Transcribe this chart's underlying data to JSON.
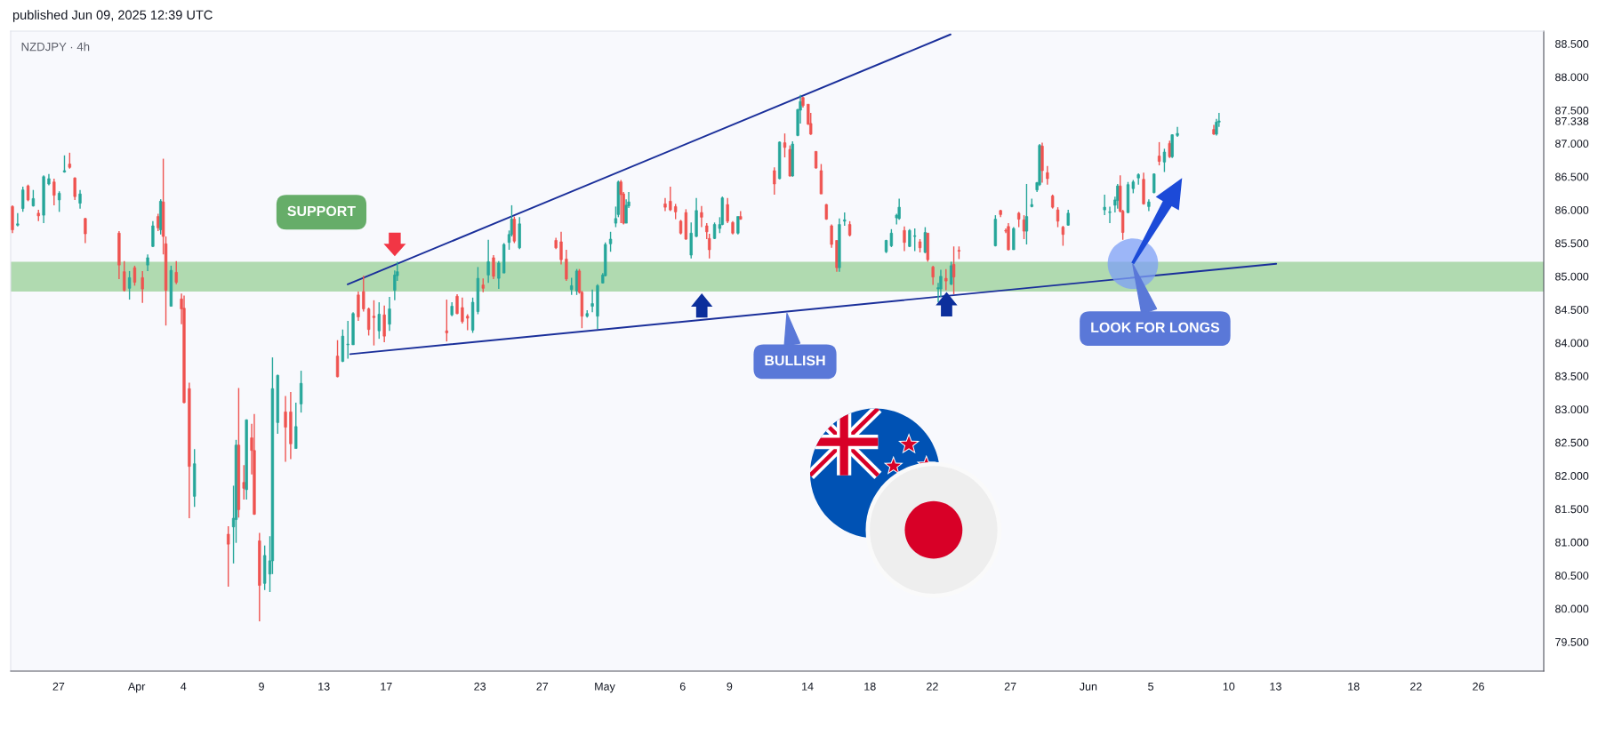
{
  "chart_data": {
    "type": "candlestick",
    "title": "NZDJPY · 4h",
    "annotations": [
      "published Jun 09, 2025 12:39 UTC",
      "SUPPORT",
      {
        "text": "BULLISH",
        "x": "2025-05-12T16:25",
        "y": 84.44
      },
      {
        "text": "LOOK FOR LONGS",
        "x": "2025-06-03T20:25",
        "y": 85.18
      }
    ],
    "xlim": [
      "2025-03-23T22:15",
      "2025-06-30T04:30"
    ],
    "ylim": [
      79.06,
      88.69
    ],
    "xticks": [
      {
        "value": "2025-03-27",
        "label": "27"
      },
      {
        "value": "2025-04-01",
        "label": "Apr"
      },
      {
        "value": "2025-04-04",
        "label": "4"
      },
      {
        "value": "2025-04-09",
        "label": "9"
      },
      {
        "value": "2025-04-13",
        "label": "13"
      },
      {
        "value": "2025-04-17",
        "label": "17"
      },
      {
        "value": "2025-04-23",
        "label": "23"
      },
      {
        "value": "2025-04-27",
        "label": "27"
      },
      {
        "value": "2025-05-01",
        "label": "May"
      },
      {
        "value": "2025-05-06",
        "label": "6"
      },
      {
        "value": "2025-05-09",
        "label": "9"
      },
      {
        "value": "2025-05-14",
        "label": "14"
      },
      {
        "value": "2025-05-18",
        "label": "18"
      },
      {
        "value": "2025-05-22",
        "label": "22"
      },
      {
        "value": "2025-05-27",
        "label": "27"
      },
      {
        "value": "2025-06-01",
        "label": "Jun"
      },
      {
        "value": "2025-06-05",
        "label": "5"
      },
      {
        "value": "2025-06-10",
        "label": "10"
      },
      {
        "value": "2025-06-13",
        "label": "13"
      },
      {
        "value": "2025-06-18",
        "label": "18"
      },
      {
        "value": "2025-06-22",
        "label": "22"
      },
      {
        "value": "2025-06-26",
        "label": "26"
      }
    ],
    "yticks": [
      {
        "value": 79.5,
        "label": "79.500"
      },
      {
        "value": 80.0,
        "label": "80.000"
      },
      {
        "value": 80.5,
        "label": "80.500"
      },
      {
        "value": 81.0,
        "label": "81.000"
      },
      {
        "value": 81.5,
        "label": "81.500"
      },
      {
        "value": 82.0,
        "label": "82.000"
      },
      {
        "value": 82.5,
        "label": "82.500"
      },
      {
        "value": 83.0,
        "label": "83.000"
      },
      {
        "value": 83.5,
        "label": "83.500"
      },
      {
        "value": 84.0,
        "label": "84.000"
      },
      {
        "value": 84.5,
        "label": "84.500"
      },
      {
        "value": 85.0,
        "label": "85.000"
      },
      {
        "value": 85.5,
        "label": "85.500"
      },
      {
        "value": 86.0,
        "label": "86.000"
      },
      {
        "value": 86.5,
        "label": "86.500"
      },
      {
        "value": 87.0,
        "label": "87.000"
      },
      {
        "value": 87.5,
        "label": "87.500"
      },
      {
        "value": 88.0,
        "label": "88.000"
      },
      {
        "value": 88.5,
        "label": "88.500"
      },
      87.338
    ],
    "bands": [
      {
        "axis": "y",
        "from": 84.77,
        "to": 85.22,
        "color": "#b0dab0"
      }
    ],
    "series": [
      {
        "type": "line",
        "x": [
          "2025-04-14T12:40",
          "2025-05-23T04:00"
        ],
        "values": [
          84.88,
          88.64
        ],
        "color": "#1a2f9a"
      },
      {
        "type": "line",
        "x": [
          "2025-04-14T16:35",
          "2025-06-13T00:55"
        ],
        "values": [
          83.83,
          85.19
        ],
        "color": "#1a2f9a"
      },
      {
        "x": [
          "2025-03-24T01:00",
          "2025-03-24T09:00",
          "2025-03-24T17:00",
          "2025-03-25T01:00",
          "2025-03-25T09:00",
          "2025-03-25T17:00",
          "2025-03-26T01:00",
          "2025-03-26T09:00",
          "2025-03-26T17:00",
          "2025-03-27T01:00",
          "2025-03-27T09:00",
          "2025-03-27T17:00",
          "2025-03-28T01:00",
          "2025-03-28T09:00",
          "2025-03-28T17:00",
          "2025-03-30T21:00",
          "2025-03-31T05:00",
          "2025-03-31T13:00",
          "2025-03-31T21:00",
          "2025-04-01T09:00",
          "2025-04-01T17:00",
          "2025-04-02T01:00",
          "2025-04-02T09:00",
          "2025-04-02T13:00",
          "2025-04-02T17:00",
          "2025-04-02T21:00",
          "2025-04-03T05:00",
          "2025-04-03T13:00",
          "2025-04-03T21:00",
          "2025-04-04T01:00",
          "2025-04-04T09:00",
          "2025-04-04T17:00",
          "2025-04-06T21:00",
          "2025-04-07T05:00",
          "2025-04-07T09:00",
          "2025-04-07T13:00",
          "2025-04-07T21:00",
          "2025-04-08T01:00",
          "2025-04-08T09:00",
          "2025-04-08T13:00",
          "2025-04-08T21:00",
          "2025-04-09T05:00",
          "2025-04-09T13:00",
          "2025-04-09T17:00",
          "2025-04-10T01:00",
          "2025-04-10T13:00",
          "2025-04-10T21:00",
          "2025-04-11T05:00",
          "2025-04-11T13:00",
          "2025-04-13T21:00",
          "2025-04-14T05:00",
          "2025-04-14T13:00",
          "2025-04-14T21:00",
          "2025-04-15T05:00",
          "2025-04-15T13:00",
          "2025-04-15T21:00",
          "2025-04-16T05:00",
          "2025-04-16T13:00",
          "2025-04-16T21:00",
          "2025-04-17T05:00",
          "2025-04-17T13:00",
          "2025-04-17T17:00",
          "2025-04-20T21:00",
          "2025-04-21T05:00",
          "2025-04-21T13:00",
          "2025-04-21T21:00",
          "2025-04-22T05:00",
          "2025-04-22T13:00",
          "2025-04-22T21:00",
          "2025-04-23T05:00",
          "2025-04-23T13:00",
          "2025-04-23T21:00",
          "2025-04-24T05:00",
          "2025-04-24T13:00",
          "2025-04-24T21:00",
          "2025-04-25T01:00",
          "2025-04-25T05:00",
          "2025-04-25T13:00",
          "2025-04-27T21:00",
          "2025-04-28T05:00",
          "2025-04-28T13:00",
          "2025-04-28T21:00",
          "2025-04-29T05:00",
          "2025-04-29T09:00",
          "2025-04-29T13:00",
          "2025-04-29T21:00",
          "2025-04-30T05:00",
          "2025-04-30T13:00",
          "2025-04-30T21:00",
          "2025-05-01T01:00",
          "2025-05-01T09:00",
          "2025-05-01T17:00",
          "2025-05-01T21:00",
          "2025-05-02T01:00",
          "2025-05-02T05:00",
          "2025-05-02T09:00",
          "2025-05-02T13:00",
          "2025-05-04T21:00",
          "2025-05-05T05:00",
          "2025-05-05T13:00",
          "2025-05-05T21:00",
          "2025-05-06T05:00",
          "2025-05-06T13:00",
          "2025-05-06T21:00",
          "2025-05-07T05:00",
          "2025-05-07T13:00",
          "2025-05-07T17:00",
          "2025-05-08T01:00",
          "2025-05-08T09:00",
          "2025-05-08T13:00",
          "2025-05-08T21:00",
          "2025-05-09T05:00",
          "2025-05-09T13:00",
          "2025-05-09T17:00",
          "2025-05-11T21:00",
          "2025-05-12T05:00",
          "2025-05-12T13:00",
          "2025-05-12T21:00",
          "2025-05-13T01:00",
          "2025-05-13T09:00",
          "2025-05-13T13:00",
          "2025-05-13T17:00",
          "2025-05-14T01:00",
          "2025-05-14T05:00",
          "2025-05-14T13:00",
          "2025-05-14T21:00",
          "2025-05-15T05:00",
          "2025-05-15T13:00",
          "2025-05-15T21:00",
          "2025-05-16T01:00",
          "2025-05-16T09:00",
          "2025-05-16T17:00",
          "2025-05-19T01:00",
          "2025-05-19T09:00",
          "2025-05-19T17:00",
          "2025-05-19T21:00",
          "2025-05-20T05:00",
          "2025-05-20T13:00",
          "2025-05-20T21:00",
          "2025-05-21T05:00",
          "2025-05-21T13:00",
          "2025-05-21T17:00",
          "2025-05-22T01:00",
          "2025-05-22T09:00",
          "2025-05-22T13:00",
          "2025-05-22T21:00",
          "2025-05-23T05:00",
          "2025-05-23T09:00",
          "2025-05-23T17:00",
          "2025-05-26T01:00",
          "2025-05-26T09:00",
          "2025-05-26T17:00",
          "2025-05-26T21:00",
          "2025-05-27T05:00",
          "2025-05-27T13:00",
          "2025-05-27T21:00",
          "2025-05-28T01:00",
          "2025-05-28T09:00",
          "2025-05-28T17:00",
          "2025-05-28T21:00",
          "2025-05-29T01:00",
          "2025-05-29T09:00",
          "2025-05-29T17:00",
          "2025-05-30T01:00",
          "2025-05-30T09:00",
          "2025-05-30T17:00",
          "2025-06-02T01:00",
          "2025-06-02T09:00",
          "2025-06-02T17:00",
          "2025-06-02T21:00",
          "2025-06-03T01:00",
          "2025-06-03T05:00",
          "2025-06-03T13:00",
          "2025-06-03T21:00",
          "2025-06-04T05:00",
          "2025-06-04T13:00",
          "2025-06-04T21:00",
          "2025-06-05T05:00",
          "2025-06-05T13:00",
          "2025-06-05T21:00",
          "2025-06-06T05:00",
          "2025-06-06T09:00",
          "2025-06-06T17:00",
          "2025-06-09T01:00",
          "2025-06-09T05:00",
          "2025-06-09T09:00"
        ],
        "ohlc": [
          [
            86.05,
            86.07,
            85.65,
            85.7
          ],
          [
            85.77,
            85.95,
            85.75,
            85.79
          ],
          [
            86.02,
            86.35,
            85.97,
            86.3
          ],
          [
            86.36,
            86.38,
            86.13,
            86.15
          ],
          [
            86.06,
            86.3,
            86.05,
            86.17
          ],
          [
            85.95,
            86.0,
            85.83,
            85.91
          ],
          [
            85.92,
            86.52,
            85.8,
            86.5
          ],
          [
            86.39,
            86.54,
            86.37,
            86.47
          ],
          [
            86.42,
            86.47,
            86.07,
            86.22
          ],
          [
            86.15,
            86.28,
            85.97,
            86.25
          ],
          [
            86.57,
            86.82,
            86.56,
            86.59
          ],
          [
            86.69,
            86.86,
            86.62,
            86.64
          ],
          [
            86.48,
            86.49,
            86.15,
            86.2
          ],
          [
            86.1,
            86.3,
            86.02,
            86.24
          ],
          [
            85.87,
            85.88,
            85.5,
            85.64
          ],
          [
            85.65,
            85.68,
            84.96,
            85.17
          ],
          [
            85.07,
            85.23,
            84.77,
            84.79
          ],
          [
            84.82,
            85.08,
            84.65,
            84.98
          ],
          [
            85.13,
            85.16,
            84.86,
            84.91
          ],
          [
            84.98,
            85.08,
            84.6,
            84.81
          ],
          [
            85.17,
            85.33,
            85.08,
            85.28
          ],
          [
            85.45,
            85.83,
            85.44,
            85.76
          ],
          [
            85.9,
            85.94,
            85.68,
            85.73
          ],
          [
            85.7,
            86.16,
            85.63,
            86.13
          ],
          [
            86.12,
            86.77,
            85.33,
            85.6
          ],
          [
            85.49,
            85.6,
            84.26,
            84.79
          ],
          [
            84.55,
            85.16,
            84.55,
            85.09
          ],
          [
            85.06,
            85.23,
            84.88,
            84.91
          ],
          [
            84.66,
            84.74,
            84.28,
            84.51
          ],
          [
            84.52,
            84.71,
            83.09,
            83.1
          ],
          [
            83.31,
            83.4,
            81.36,
            82.14
          ],
          [
            81.69,
            82.4,
            81.53,
            82.18
          ],
          [
            81.12,
            81.24,
            80.33,
            80.97
          ],
          [
            81.23,
            81.85,
            80.68,
            81.36
          ],
          [
            81.34,
            82.54,
            80.99,
            82.46
          ],
          [
            82.46,
            83.32,
            81.37,
            81.49
          ],
          [
            81.9,
            82.16,
            81.64,
            81.81
          ],
          [
            81.79,
            82.85,
            81.64,
            82.84
          ],
          [
            82.57,
            82.78,
            82.02,
            82.38
          ],
          [
            82.38,
            82.93,
            81.41,
            81.42
          ],
          [
            81.02,
            81.14,
            79.81,
            80.35
          ],
          [
            80.38,
            80.95,
            80.28,
            80.8
          ],
          [
            80.52,
            81.09,
            80.25,
            80.72
          ],
          [
            80.72,
            83.78,
            80.52,
            83.31
          ],
          [
            82.8,
            83.52,
            82.63,
            83.51
          ],
          [
            82.96,
            83.2,
            82.21,
            82.73
          ],
          [
            82.96,
            83.26,
            82.25,
            82.48
          ],
          [
            82.41,
            83.1,
            82.41,
            82.74
          ],
          [
            83.08,
            83.58,
            82.95,
            83.39
          ],
          [
            83.8,
            84.04,
            83.48,
            83.49
          ],
          [
            83.72,
            84.2,
            83.71,
            84.1
          ],
          [
            83.97,
            84.33,
            83.76,
            83.98
          ],
          [
            83.97,
            84.46,
            83.97,
            84.44
          ],
          [
            84.72,
            84.77,
            84.33,
            84.39
          ],
          [
            84.77,
            85.01,
            84.47,
            84.51
          ],
          [
            84.51,
            84.53,
            84.11,
            84.2
          ],
          [
            84.4,
            84.64,
            83.96,
            84.38
          ],
          [
            84.18,
            84.61,
            84.06,
            84.43
          ],
          [
            84.42,
            84.56,
            84.01,
            84.1
          ],
          [
            84.28,
            84.69,
            84.18,
            84.51
          ],
          [
            84.79,
            85.09,
            84.64,
            85.02
          ],
          [
            85.01,
            85.22,
            84.93,
            85.07
          ],
          [
            84.18,
            84.65,
            84.02,
            84.15
          ],
          [
            84.42,
            84.61,
            84.4,
            84.55
          ],
          [
            84.7,
            84.73,
            84.43,
            84.44
          ],
          [
            84.53,
            84.68,
            84.29,
            84.32
          ],
          [
            84.4,
            84.43,
            84.19,
            84.37
          ],
          [
            84.19,
            84.68,
            84.15,
            84.61
          ],
          [
            84.47,
            85.14,
            84.43,
            84.97
          ],
          [
            84.87,
            84.97,
            84.76,
            84.82
          ],
          [
            85.02,
            85.55,
            84.9,
            85.22
          ],
          [
            85.28,
            85.32,
            84.96,
            85.0
          ],
          [
            84.97,
            85.23,
            84.81,
            85.2
          ],
          [
            85.05,
            85.5,
            85.05,
            85.48
          ],
          [
            85.51,
            85.69,
            85.4,
            85.63
          ],
          [
            85.63,
            86.07,
            85.6,
            85.86
          ],
          [
            85.86,
            85.9,
            85.5,
            85.53
          ],
          [
            85.43,
            85.89,
            85.41,
            85.79
          ],
          [
            85.54,
            85.58,
            85.41,
            85.43
          ],
          [
            85.52,
            85.67,
            85.18,
            85.25
          ],
          [
            85.26,
            85.4,
            84.93,
            84.96
          ],
          [
            84.8,
            84.98,
            84.72,
            84.86
          ],
          [
            84.78,
            85.11,
            84.72,
            85.08
          ],
          [
            85.08,
            85.11,
            84.74,
            84.76
          ],
          [
            84.76,
            84.78,
            84.22,
            84.4
          ],
          [
            84.4,
            84.49,
            84.38,
            84.44
          ],
          [
            84.55,
            84.8,
            84.46,
            84.59
          ],
          [
            84.4,
            84.88,
            84.21,
            84.86
          ],
          [
            84.9,
            85.05,
            84.89,
            85.02
          ],
          [
            85.01,
            85.51,
            85.0,
            85.48
          ],
          [
            85.49,
            85.67,
            85.37,
            85.56
          ],
          [
            85.8,
            86.05,
            85.74,
            85.87
          ],
          [
            85.93,
            86.44,
            85.89,
            86.42
          ],
          [
            86.42,
            86.45,
            85.8,
            86.23
          ],
          [
            86.24,
            86.27,
            85.78,
            85.8
          ],
          [
            85.8,
            86.16,
            85.8,
            86.07
          ],
          [
            86.06,
            86.27,
            86.03,
            86.12
          ],
          [
            86.09,
            86.18,
            85.98,
            86.04
          ],
          [
            86.13,
            86.35,
            85.98,
            86.0
          ],
          [
            86.05,
            86.09,
            85.86,
            85.97
          ],
          [
            85.83,
            85.85,
            85.63,
            85.65
          ],
          [
            85.96,
            86.01,
            85.55,
            85.56
          ],
          [
            85.32,
            85.81,
            85.27,
            85.65
          ],
          [
            85.6,
            86.18,
            85.59,
            85.99
          ],
          [
            85.96,
            86.06,
            85.74,
            85.89
          ],
          [
            85.76,
            85.8,
            85.56,
            85.67
          ],
          [
            85.57,
            85.64,
            85.27,
            85.4
          ],
          [
            85.57,
            85.81,
            85.56,
            85.78
          ],
          [
            85.72,
            85.89,
            85.65,
            85.78
          ],
          [
            85.78,
            86.2,
            85.77,
            86.18
          ],
          [
            86.08,
            86.18,
            85.8,
            85.83
          ],
          [
            85.81,
            85.83,
            85.63,
            85.65
          ],
          [
            85.65,
            85.9,
            85.63,
            85.9
          ],
          [
            85.9,
            85.98,
            85.85,
            85.86
          ],
          [
            86.59,
            86.64,
            86.23,
            86.39
          ],
          [
            86.47,
            87.03,
            86.46,
            87.02
          ],
          [
            87.01,
            87.15,
            86.79,
            86.94
          ],
          [
            86.91,
            86.97,
            86.5,
            86.51
          ],
          [
            86.51,
            87.03,
            86.5,
            86.99
          ],
          [
            87.12,
            87.52,
            87.11,
            87.51
          ],
          [
            87.5,
            87.73,
            87.3,
            87.63
          ],
          [
            87.69,
            87.7,
            87.54,
            87.57
          ],
          [
            87.59,
            87.59,
            87.28,
            87.29
          ],
          [
            87.3,
            87.46,
            87.13,
            87.14
          ],
          [
            86.88,
            86.88,
            86.62,
            86.63
          ],
          [
            86.59,
            86.69,
            86.24,
            86.24
          ],
          [
            86.08,
            86.09,
            85.85,
            85.86
          ],
          [
            85.76,
            85.78,
            85.43,
            85.48
          ],
          [
            85.54,
            85.54,
            85.07,
            85.13
          ],
          [
            85.13,
            85.87,
            85.07,
            85.78
          ],
          [
            85.83,
            85.96,
            85.76,
            85.85
          ],
          [
            85.78,
            85.83,
            85.6,
            85.62
          ],
          [
            85.37,
            85.55,
            85.35,
            85.54
          ],
          [
            85.46,
            85.71,
            85.44,
            85.65
          ],
          [
            85.88,
            85.94,
            85.78,
            85.92
          ],
          [
            85.87,
            86.17,
            85.85,
            86.04
          ],
          [
            85.69,
            85.75,
            85.38,
            85.51
          ],
          [
            85.45,
            85.71,
            85.44,
            85.69
          ],
          [
            85.6,
            85.72,
            85.38,
            85.61
          ],
          [
            85.52,
            85.56,
            85.36,
            85.43
          ],
          [
            85.36,
            85.74,
            85.35,
            85.66
          ],
          [
            85.65,
            85.65,
            85.22,
            85.25
          ],
          [
            85.14,
            85.16,
            84.87,
            84.99
          ],
          [
            84.81,
            84.9,
            84.61,
            84.83
          ],
          [
            84.81,
            85.1,
            84.69,
            85.0
          ],
          [
            84.97,
            85.11,
            84.79,
            84.93
          ],
          [
            84.88,
            85.22,
            84.87,
            85.16
          ],
          [
            85.18,
            85.45,
            84.73,
            84.99
          ],
          [
            85.39,
            85.45,
            85.26,
            85.38
          ],
          [
            85.46,
            85.92,
            85.45,
            85.86
          ],
          [
            85.99,
            86.0,
            85.89,
            85.93
          ],
          [
            85.69,
            85.72,
            85.65,
            85.68
          ],
          [
            85.75,
            85.8,
            85.39,
            85.4
          ],
          [
            85.4,
            85.74,
            85.4,
            85.72
          ],
          [
            85.95,
            85.97,
            85.74,
            85.86
          ],
          [
            85.85,
            85.92,
            85.56,
            85.68
          ],
          [
            85.68,
            86.39,
            85.48,
            85.9
          ],
          [
            86.05,
            86.17,
            86.04,
            86.08
          ],
          [
            86.3,
            86.42,
            86.27,
            86.41
          ],
          [
            86.38,
            86.99,
            86.36,
            86.97
          ],
          [
            86.96,
            87.01,
            86.41,
            86.59
          ],
          [
            86.56,
            86.66,
            86.38,
            86.47
          ],
          [
            86.21,
            86.23,
            86.02,
            86.04
          ],
          [
            86.0,
            86.04,
            85.74,
            85.83
          ],
          [
            85.74,
            85.76,
            85.46,
            85.63
          ],
          [
            85.77,
            86.0,
            85.76,
            85.95
          ],
          [
            86.0,
            86.23,
            85.92,
            86.04
          ],
          [
            85.96,
            86.05,
            85.8,
            85.97
          ],
          [
            86.07,
            86.2,
            85.96,
            86.15
          ],
          [
            86.14,
            86.39,
            86.02,
            86.36
          ],
          [
            86.36,
            86.52,
            85.96,
            85.98
          ],
          [
            85.98,
            86.0,
            85.55,
            85.66
          ],
          [
            85.96,
            86.42,
            85.95,
            86.38
          ],
          [
            86.32,
            86.45,
            86.25,
            86.42
          ],
          [
            86.48,
            86.55,
            86.38,
            86.53
          ],
          [
            86.46,
            86.56,
            86.08,
            86.09
          ],
          [
            86.05,
            86.16,
            85.98,
            86.12
          ],
          [
            86.26,
            86.55,
            86.25,
            86.54
          ],
          [
            86.81,
            87.02,
            86.67,
            86.73
          ],
          [
            86.72,
            86.92,
            86.57,
            86.87
          ],
          [
            87.0,
            87.04,
            86.78,
            86.8
          ],
          [
            86.8,
            87.14,
            86.78,
            87.13
          ],
          [
            87.12,
            87.25,
            87.1,
            87.15
          ],
          [
            87.21,
            87.28,
            87.13,
            87.14
          ],
          [
            87.14,
            87.37,
            87.12,
            87.32
          ],
          [
            87.32,
            87.46,
            87.25,
            87.338
          ]
        ],
        "colors": [
          "#ef5350",
          "#26a69a",
          "#26a69a",
          "#ef5350",
          "#26a69a",
          "#ef5350",
          "#26a69a",
          "#26a69a",
          "#ef5350",
          "#26a69a",
          "#26a69a",
          "#ef5350",
          "#ef5350",
          "#26a69a",
          "#ef5350",
          "#ef5350",
          "#ef5350",
          "#26a69a",
          "#ef5350",
          "#ef5350",
          "#26a69a",
          "#26a69a",
          "#ef5350",
          "#26a69a",
          "#ef5350",
          "#ef5350",
          "#26a69a",
          "#ef5350",
          "#ef5350",
          "#ef5350",
          "#ef5350",
          "#26a69a",
          "#ef5350",
          "#26a69a",
          "#26a69a",
          "#ef5350",
          "#ef5350",
          "#26a69a",
          "#ef5350",
          "#ef5350",
          "#ef5350",
          "#26a69a",
          "#26a69a",
          "#26a69a",
          "#26a69a",
          "#ef5350",
          "#ef5350",
          "#26a69a",
          "#26a69a",
          "#ef5350",
          "#26a69a",
          "#26a69a",
          "#26a69a",
          "#ef5350",
          "#ef5350",
          "#ef5350",
          "#ef5350",
          "#26a69a",
          "#ef5350",
          "#26a69a",
          "#26a69a",
          "#26a69a",
          "#ef5350",
          "#26a69a",
          "#ef5350",
          "#ef5350",
          "#ef5350",
          "#26a69a",
          "#26a69a",
          "#ef5350",
          "#26a69a",
          "#ef5350",
          "#26a69a",
          "#26a69a",
          "#26a69a",
          "#26a69a",
          "#ef5350",
          "#26a69a",
          "#ef5350",
          "#ef5350",
          "#ef5350",
          "#26a69a",
          "#26a69a",
          "#ef5350",
          "#ef5350",
          "#26a69a",
          "#26a69a",
          "#26a69a",
          "#26a69a",
          "#26a69a",
          "#26a69a",
          "#26a69a",
          "#26a69a",
          "#ef5350",
          "#ef5350",
          "#26a69a",
          "#26a69a",
          "#ef5350",
          "#ef5350",
          "#ef5350",
          "#ef5350",
          "#ef5350",
          "#26a69a",
          "#26a69a",
          "#ef5350",
          "#ef5350",
          "#ef5350",
          "#26a69a",
          "#26a69a",
          "#26a69a",
          "#ef5350",
          "#ef5350",
          "#26a69a",
          "#ef5350",
          "#ef5350",
          "#26a69a",
          "#ef5350",
          "#ef5350",
          "#26a69a",
          "#26a69a",
          "#26a69a",
          "#ef5350",
          "#ef5350",
          "#ef5350",
          "#ef5350",
          "#ef5350",
          "#ef5350",
          "#ef5350",
          "#ef5350",
          "#26a69a",
          "#26a69a",
          "#ef5350",
          "#26a69a",
          "#26a69a",
          "#26a69a",
          "#26a69a",
          "#ef5350",
          "#26a69a",
          "#26a69a",
          "#ef5350",
          "#26a69a",
          "#ef5350",
          "#ef5350",
          "#26a69a",
          "#26a69a",
          "#ef5350",
          "#26a69a",
          "#ef5350",
          "#ef5350",
          "#26a69a",
          "#ef5350",
          "#ef5350",
          "#ef5350",
          "#26a69a",
          "#ef5350",
          "#ef5350",
          "#26a69a",
          "#26a69a",
          "#26a69a",
          "#26a69a",
          "#ef5350",
          "#ef5350",
          "#ef5350",
          "#ef5350",
          "#ef5350",
          "#26a69a",
          "#26a69a",
          "#26a69a",
          "#26a69a",
          "#26a69a",
          "#ef5350",
          "#ef5350",
          "#26a69a",
          "#26a69a",
          "#26a69a",
          "#ef5350",
          "#26a69a",
          "#26a69a",
          "#ef5350",
          "#26a69a",
          "#ef5350",
          "#26a69a",
          "#26a69a",
          "#ef5350",
          "#26a69a",
          "#26a69a"
        ]
      }
    ]
  }
}
